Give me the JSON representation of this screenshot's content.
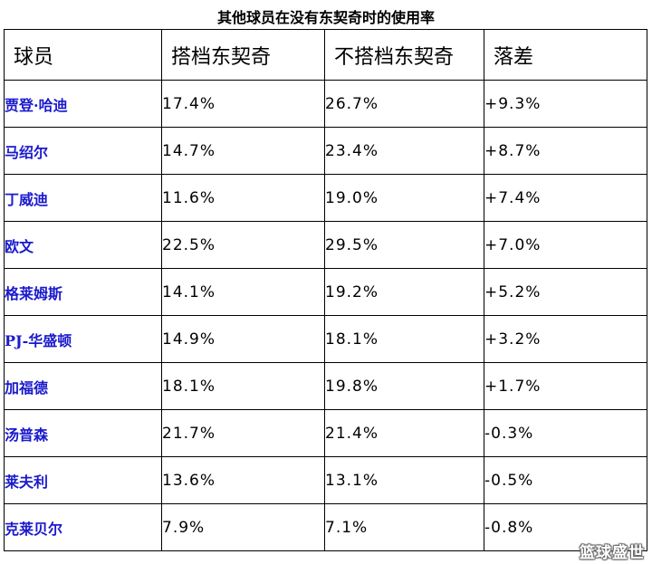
{
  "title": "其他球员在没有东契奇时的使用率",
  "table": {
    "headers": [
      "球员",
      "搭档东契奇",
      "不搭档东契奇",
      "落差"
    ],
    "rows": [
      {
        "player": "贾登·哈迪",
        "with": "17.4%",
        "without": "26.7%",
        "diff": "+9.3%"
      },
      {
        "player": "马绍尔",
        "with": "14.7%",
        "without": "23.4%",
        "diff": "+8.7%"
      },
      {
        "player": "丁威迪",
        "with": "11.6%",
        "without": "19.0%",
        "diff": "+7.4%"
      },
      {
        "player": "欧文",
        "with": "22.5%",
        "without": "29.5%",
        "diff": "+7.0%"
      },
      {
        "player": "格莱姆斯",
        "with": "14.1%",
        "without": "19.2%",
        "diff": "+5.2%"
      },
      {
        "player": "PJ-华盛顿",
        "with": "14.9%",
        "without": "18.1%",
        "diff": "+3.2%"
      },
      {
        "player": "加福德",
        "with": "18.1%",
        "without": "19.8%",
        "diff": "+1.7%"
      },
      {
        "player": "汤普森",
        "with": "21.7%",
        "without": "21.4%",
        "diff": "-0.3%"
      },
      {
        "player": "莱夫利",
        "with": "13.6%",
        "without": "13.1%",
        "diff": "-0.5%"
      },
      {
        "player": "克莱贝尔",
        "with": "7.9%",
        "without": "7.1%",
        "diff": "-0.8%"
      }
    ]
  },
  "watermark": "篮球盛世",
  "colors": {
    "player_text": "#1a1acd",
    "grid": "#000000"
  }
}
